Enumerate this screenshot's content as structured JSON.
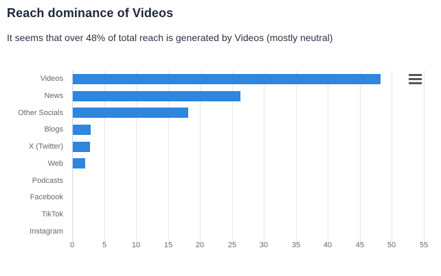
{
  "header": {
    "title": "Reach dominance of Videos",
    "subtitle": "It seems that over 48% of total reach is generated by Videos (mostly neutral)"
  },
  "toolbar": {
    "export_menu_icon": "hamburger-menu-icon"
  },
  "colors": {
    "bar": "#2e86de",
    "gridline": "#e6e6e6",
    "axis_line": "#ccd6eb",
    "tick_label": "#666666",
    "title_text": "#1e2838"
  },
  "chart_data": {
    "type": "bar",
    "orientation": "horizontal",
    "title": "Reach dominance of Videos",
    "subtitle": "It seems that over 48% of total reach is generated by Videos (mostly neutral)",
    "categories": [
      "Videos",
      "News",
      "Other Socials",
      "Blogs",
      "X (Twitter)",
      "Web",
      "Podcasts",
      "Facebook",
      "TikTok",
      "Instagram"
    ],
    "values": [
      48.1,
      26.2,
      18,
      2.8,
      2.7,
      1.9,
      0,
      0,
      0,
      0
    ],
    "xlabel": "",
    "ylabel": "",
    "xlim": [
      0,
      55
    ],
    "xticks": [
      0,
      5,
      10,
      15,
      20,
      25,
      30,
      35,
      40,
      45,
      50,
      55
    ],
    "bar_color": "#2e86de",
    "grid": true,
    "legend": false
  }
}
